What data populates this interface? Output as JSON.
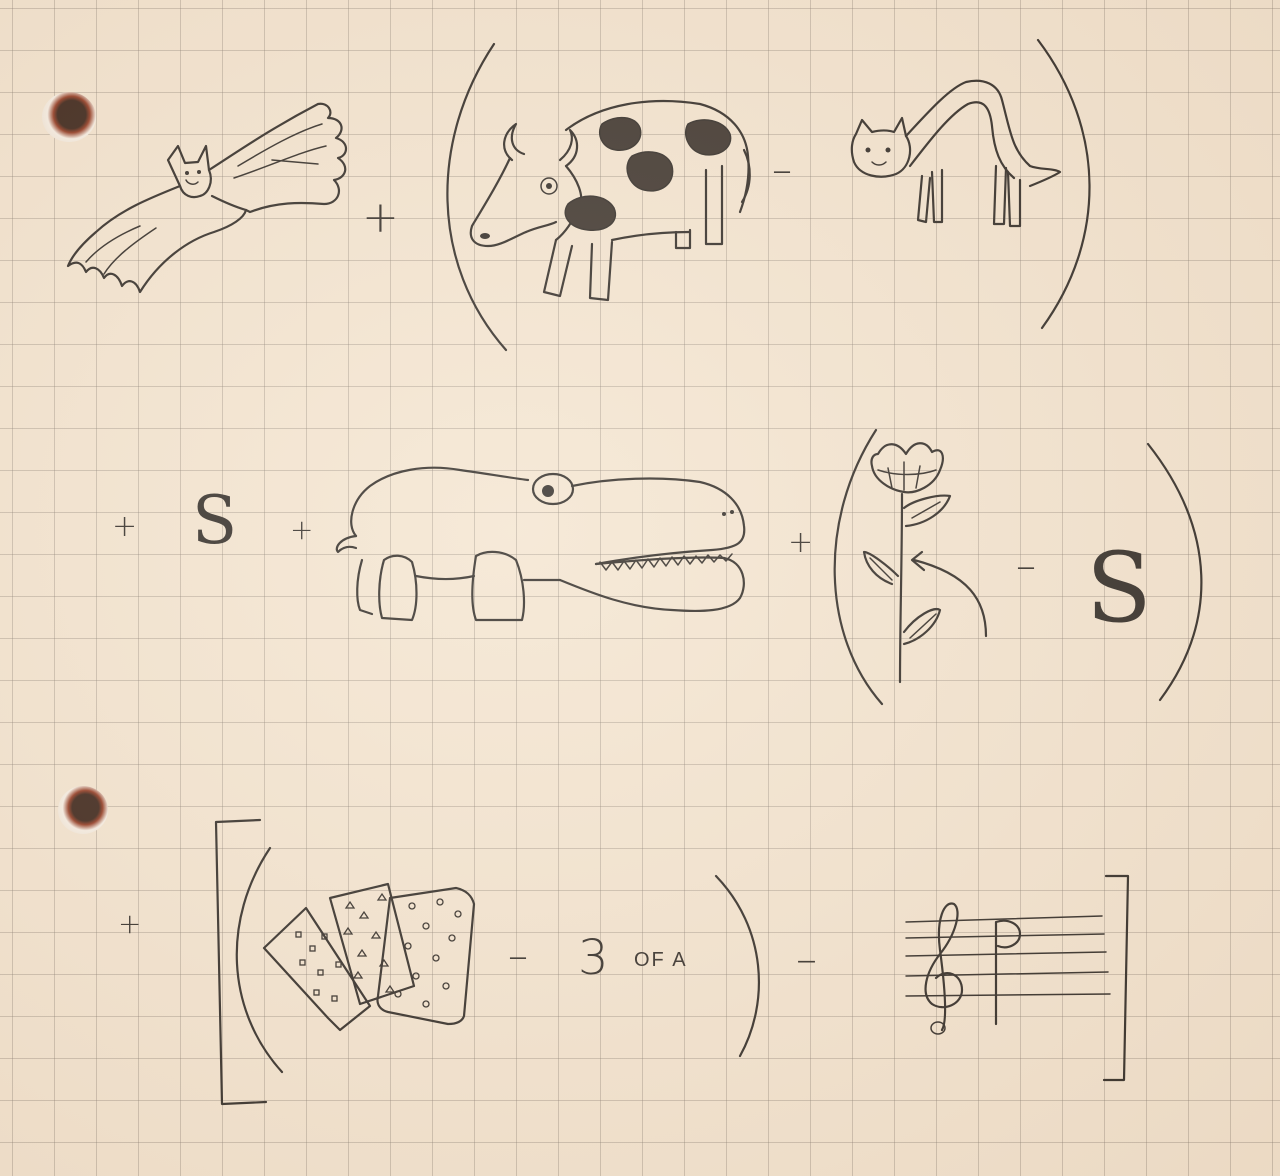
{
  "operators": {
    "plus": "+",
    "minus": "–"
  },
  "letters": {
    "s": "S"
  },
  "three_of_a_kind": {
    "number": "3",
    "words": "OF A"
  },
  "colors": {
    "paper": "#f3e4d0",
    "grid": "#8a7f74",
    "ink": "#1e1a17"
  },
  "icons": [
    "bat-icon",
    "cow-icon",
    "cat-icon",
    "hippo-icon",
    "tulip-stem-icon",
    "playing-cards-icon",
    "treble-clef-staff-icon"
  ]
}
